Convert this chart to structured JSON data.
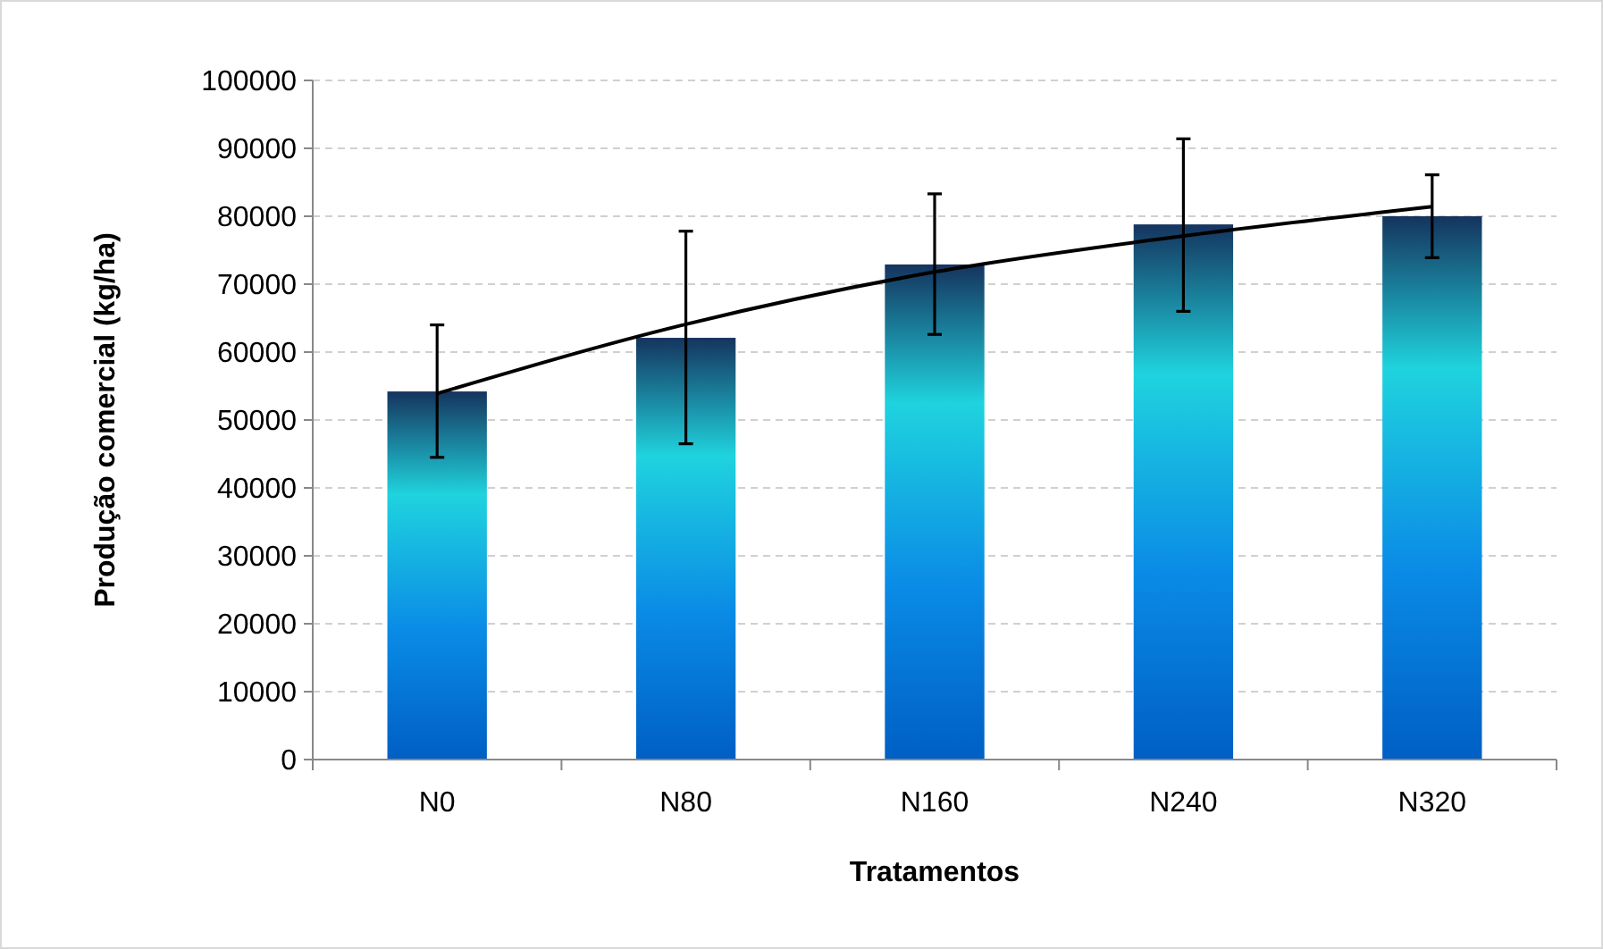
{
  "chart_data": {
    "type": "bar",
    "xlabel": "Tratamentos",
    "ylabel": "Produção comercial (kg/ha)",
    "categories": [
      "N0",
      "N80",
      "N160",
      "N240",
      "N320"
    ],
    "series": [
      {
        "color": "#1fd3de",
        "values": [
          54200,
          62100,
          72900,
          78800,
          80000
        ],
        "errors": [
          [
            44500,
            64000
          ],
          [
            46500,
            77800
          ],
          [
            62600,
            83300
          ],
          [
            66000,
            91400
          ],
          [
            73900,
            86100
          ]
        ]
      },
      {
        "type": "line",
        "color": "#000000",
        "values": [
          53900,
          64100,
          71800,
          77100,
          81400
        ]
      }
    ],
    "ylim": [
      0,
      100000
    ],
    "yticks": [
      0,
      10000,
      20000,
      30000,
      40000,
      50000,
      60000,
      70000,
      80000,
      90000,
      100000
    ],
    "grid": "y"
  }
}
